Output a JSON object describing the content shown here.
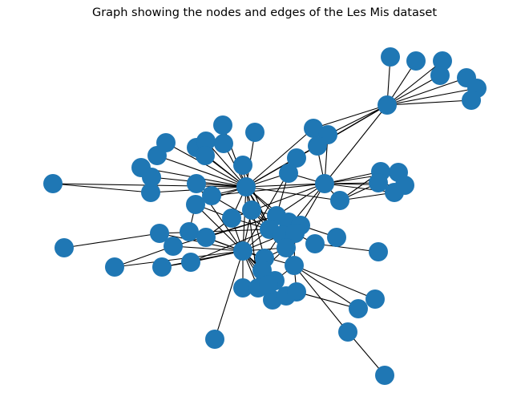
{
  "title": "Graph showing the nodes and edges of the Les Mis dataset",
  "style": {
    "node_color": "#1f77b4",
    "edge_color": "#000000"
  },
  "graph": {
    "node_count": 77,
    "notes": "Node labels are not drawn in the figure; nodes are anonymous blue circles."
  }
}
